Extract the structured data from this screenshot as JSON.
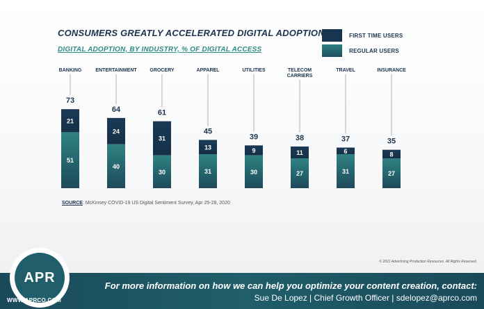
{
  "title": "CONSUMERS GREATLY ACCELERATED DIGITAL ADOPTION",
  "subtitle": "DIGITAL ADOPTION, BY INDUSTRY, % OF DIGITAL ACCESS",
  "colors": {
    "first_time": "#173550",
    "regular": "#2b7579"
  },
  "chart_data": {
    "type": "bar",
    "stacked": true,
    "title": "CONSUMERS GREATLY ACCELERATED DIGITAL ADOPTION",
    "subtitle": "DIGITAL ADOPTION, BY INDUSTRY, % OF DIGITAL ACCESS",
    "categories": [
      "BANKING",
      "ENTERTAINMENT",
      "GROCERY",
      "APPAREL",
      "UTILITIES",
      "TELECOM CARRIERS",
      "TRAVEL",
      "INSURANCE"
    ],
    "totals": [
      73,
      64,
      61,
      45,
      39,
      38,
      37,
      35
    ],
    "series": [
      {
        "name": "FIRST TIME USERS",
        "values": [
          21,
          24,
          31,
          13,
          9,
          11,
          6,
          8
        ]
      },
      {
        "name": "REGULAR USERS",
        "values": [
          51,
          40,
          30,
          31,
          30,
          27,
          31,
          27
        ]
      }
    ],
    "legend_position": "top-right",
    "grid": false,
    "ylim": [
      0,
      75
    ]
  },
  "source": {
    "label": "SOURCE",
    "text": ": McKinsey COVID-19 US Digital Sentiment Survey, Apr 25-28, 2020"
  },
  "copyright": "© 2021 Advertising Production Resources. All Rights Reserved.",
  "footer": {
    "line1": "For more information on how we can help you optimize your content creation, contact:",
    "line2": "Sue De Lopez | Chief Growth Officer | sdelopez@aprco.com",
    "logo_text": "APR",
    "url": "WWW.APRCO.COM"
  }
}
